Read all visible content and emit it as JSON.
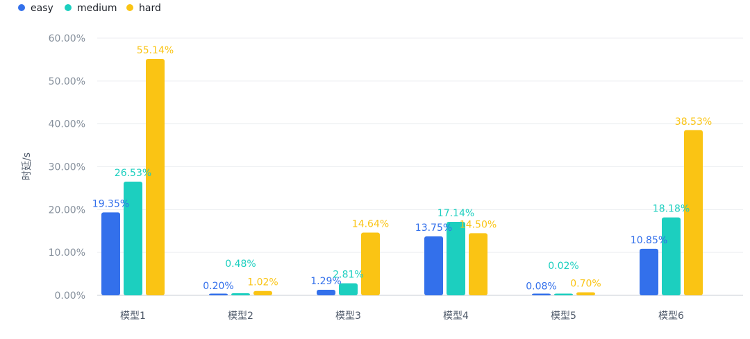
{
  "chart_data": {
    "type": "bar",
    "ylabel": "时延/s",
    "xlabel": "",
    "ylim": [
      0,
      60
    ],
    "yticks": [
      "0.00%",
      "10.00%",
      "20.00%",
      "30.00%",
      "40.00%",
      "50.00%",
      "60.00%"
    ],
    "grid": true,
    "legend_position": "top-left",
    "categories": [
      "模型1",
      "模型2",
      "模型3",
      "模型4",
      "模型5",
      "模型6"
    ],
    "series": [
      {
        "name": "easy",
        "color": "#3370eb",
        "values": [
          19.35,
          0.2,
          1.29,
          13.75,
          0.08,
          10.85
        ],
        "labels": [
          "19.35%",
          "0.20%",
          "1.29%",
          "13.75%",
          "0.08%",
          "10.85%"
        ]
      },
      {
        "name": "medium",
        "color": "#1ccfbf",
        "values": [
          26.53,
          0.48,
          2.81,
          17.14,
          0.02,
          18.18
        ],
        "labels": [
          "26.53%",
          "0.48%",
          "2.81%",
          "17.14%",
          "0.02%",
          "18.18%"
        ]
      },
      {
        "name": "hard",
        "color": "#fac414",
        "values": [
          55.14,
          1.02,
          14.64,
          14.5,
          0.7,
          38.53
        ],
        "labels": [
          "55.14%",
          "1.02%",
          "14.64%",
          "14.50%",
          "0.70%",
          "38.53%"
        ]
      }
    ]
  }
}
